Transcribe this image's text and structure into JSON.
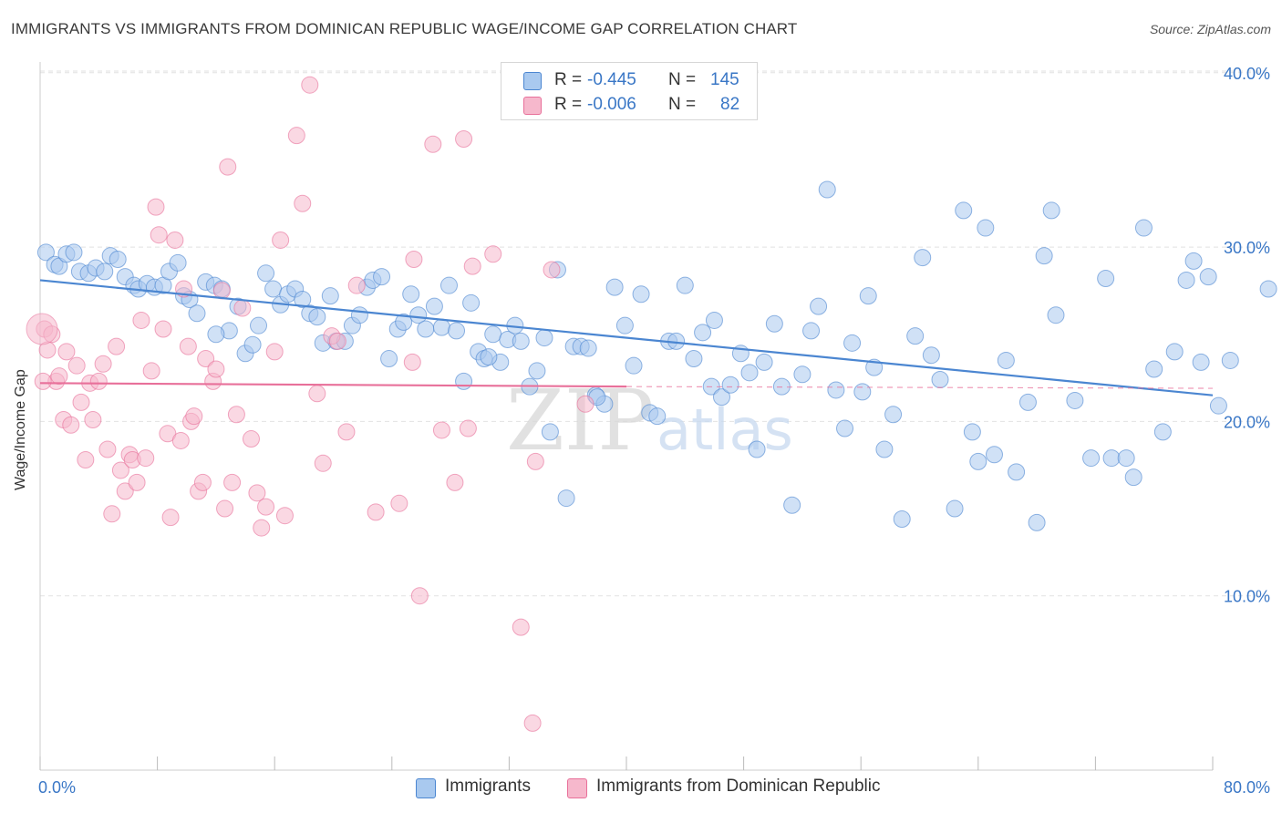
{
  "title": "IMMIGRANTS VS IMMIGRANTS FROM DOMINICAN REPUBLIC WAGE/INCOME GAP CORRELATION CHART",
  "source": "Source: ZipAtlas.com",
  "watermark": {
    "zip": "ZIP",
    "atlas": "atlas"
  },
  "legend": [
    {
      "r_label": "R =",
      "r_value": "-0.445",
      "n_label": "N =",
      "n_value": "145",
      "color": "#a9c9ef"
    },
    {
      "r_label": "R =",
      "r_value": "-0.006",
      "n_label": "N =",
      "n_value": "82",
      "color": "#f6b8cc"
    }
  ],
  "bottom_legend": [
    {
      "label": "Immigrants",
      "color": "#a9c9ef"
    },
    {
      "label": "Immigrants from Dominican Republic",
      "color": "#f6b8cc"
    }
  ],
  "chart_data": {
    "type": "scatter",
    "ylabel": "Wage/Income Gap",
    "xlim": [
      0,
      80
    ],
    "ylim": [
      0,
      40
    ],
    "x_tick_labels": [
      "0.0%",
      "80.0%"
    ],
    "y_tick_labels": [
      "10.0%",
      "20.0%",
      "30.0%",
      "40.0%"
    ],
    "y_ticks": [
      10,
      20,
      30,
      40
    ],
    "grid": true,
    "series": [
      {
        "name": "Immigrants",
        "color": "#4b86d1",
        "fill": "#a9c9ef",
        "trend": {
          "x0": 0,
          "y0": 28.1,
          "x1": 80,
          "y1": 21.5
        },
        "points": [
          [
            0.4,
            29.7
          ],
          [
            1.0,
            29.0
          ],
          [
            1.3,
            28.9
          ],
          [
            1.8,
            29.6
          ],
          [
            2.3,
            29.7
          ],
          [
            2.7,
            28.6
          ],
          [
            3.3,
            28.5
          ],
          [
            3.8,
            28.8
          ],
          [
            4.4,
            28.6
          ],
          [
            4.8,
            29.5
          ],
          [
            5.3,
            29.3
          ],
          [
            5.8,
            28.3
          ],
          [
            6.4,
            27.8
          ],
          [
            6.7,
            27.6
          ],
          [
            7.3,
            27.9
          ],
          [
            7.8,
            27.7
          ],
          [
            8.4,
            27.8
          ],
          [
            8.8,
            28.6
          ],
          [
            9.4,
            29.1
          ],
          [
            9.8,
            27.2
          ],
          [
            10.2,
            27.0
          ],
          [
            10.7,
            26.2
          ],
          [
            11.3,
            28.0
          ],
          [
            11.9,
            27.8
          ],
          [
            12.4,
            27.6
          ],
          [
            12.9,
            25.2
          ],
          [
            13.5,
            26.6
          ],
          [
            14.0,
            23.9
          ],
          [
            14.5,
            24.4
          ],
          [
            14.9,
            25.5
          ],
          [
            15.4,
            28.5
          ],
          [
            15.9,
            27.6
          ],
          [
            16.4,
            26.7
          ],
          [
            16.9,
            27.3
          ],
          [
            17.4,
            27.6
          ],
          [
            17.9,
            27.0
          ],
          [
            18.4,
            26.2
          ],
          [
            18.9,
            26.0
          ],
          [
            19.3,
            24.5
          ],
          [
            19.8,
            27.2
          ],
          [
            20.2,
            24.6
          ],
          [
            20.8,
            24.6
          ],
          [
            21.3,
            25.5
          ],
          [
            21.8,
            26.1
          ],
          [
            22.3,
            27.7
          ],
          [
            22.7,
            28.1
          ],
          [
            23.3,
            28.3
          ],
          [
            23.8,
            23.6
          ],
          [
            24.4,
            25.3
          ],
          [
            24.8,
            25.7
          ],
          [
            25.3,
            27.3
          ],
          [
            25.8,
            26.1
          ],
          [
            26.3,
            25.3
          ],
          [
            26.9,
            26.6
          ],
          [
            27.4,
            25.4
          ],
          [
            27.9,
            27.8
          ],
          [
            28.4,
            25.2
          ],
          [
            28.9,
            22.3
          ],
          [
            29.4,
            26.8
          ],
          [
            29.9,
            24.0
          ],
          [
            30.3,
            23.6
          ],
          [
            30.9,
            25.0
          ],
          [
            31.4,
            23.4
          ],
          [
            31.9,
            24.7
          ],
          [
            32.4,
            25.5
          ],
          [
            32.8,
            24.6
          ],
          [
            33.4,
            22.0
          ],
          [
            33.9,
            22.9
          ],
          [
            34.4,
            24.8
          ],
          [
            34.8,
            19.4
          ],
          [
            35.3,
            28.7
          ],
          [
            35.9,
            15.6
          ],
          [
            36.4,
            24.3
          ],
          [
            36.9,
            24.3
          ],
          [
            37.4,
            24.2
          ],
          [
            37.9,
            21.5
          ],
          [
            38.5,
            21.0
          ],
          [
            39.2,
            27.7
          ],
          [
            39.9,
            25.5
          ],
          [
            40.5,
            23.2
          ],
          [
            41.0,
            27.3
          ],
          [
            41.6,
            20.5
          ],
          [
            42.1,
            20.3
          ],
          [
            42.9,
            24.6
          ],
          [
            43.4,
            24.6
          ],
          [
            44.0,
            27.8
          ],
          [
            44.6,
            23.6
          ],
          [
            45.2,
            25.1
          ],
          [
            45.8,
            22.0
          ],
          [
            46.5,
            21.4
          ],
          [
            47.1,
            22.1
          ],
          [
            47.8,
            23.9
          ],
          [
            48.4,
            22.8
          ],
          [
            48.9,
            18.4
          ],
          [
            49.4,
            23.4
          ],
          [
            50.1,
            25.6
          ],
          [
            50.6,
            22.0
          ],
          [
            51.3,
            15.2
          ],
          [
            52.0,
            22.7
          ],
          [
            52.6,
            25.2
          ],
          [
            53.1,
            26.6
          ],
          [
            53.7,
            33.3
          ],
          [
            54.3,
            21.8
          ],
          [
            54.9,
            19.6
          ],
          [
            55.4,
            24.5
          ],
          [
            56.1,
            21.7
          ],
          [
            56.9,
            23.1
          ],
          [
            57.6,
            18.4
          ],
          [
            58.2,
            20.4
          ],
          [
            58.8,
            14.4
          ],
          [
            59.7,
            24.9
          ],
          [
            60.2,
            29.4
          ],
          [
            60.8,
            23.8
          ],
          [
            61.4,
            22.4
          ],
          [
            62.4,
            15.0
          ],
          [
            63.0,
            32.1
          ],
          [
            63.6,
            19.4
          ],
          [
            64.0,
            17.7
          ],
          [
            64.5,
            31.1
          ],
          [
            65.1,
            18.1
          ],
          [
            65.9,
            23.5
          ],
          [
            66.6,
            17.1
          ],
          [
            67.4,
            21.1
          ],
          [
            68.0,
            14.2
          ],
          [
            68.5,
            29.5
          ],
          [
            69.0,
            32.1
          ],
          [
            69.3,
            26.1
          ],
          [
            70.6,
            21.2
          ],
          [
            71.7,
            17.9
          ],
          [
            72.7,
            28.2
          ],
          [
            73.1,
            17.9
          ],
          [
            74.1,
            17.9
          ],
          [
            74.6,
            16.8
          ],
          [
            75.3,
            31.1
          ],
          [
            76.0,
            23.0
          ],
          [
            76.6,
            19.4
          ],
          [
            77.4,
            24.0
          ],
          [
            78.2,
            28.1
          ],
          [
            78.7,
            29.2
          ],
          [
            79.2,
            23.4
          ],
          [
            79.7,
            28.3
          ],
          [
            80.4,
            20.9
          ],
          [
            81.2,
            23.5
          ],
          [
            83.8,
            27.6
          ],
          [
            30.6,
            23.7
          ],
          [
            38.0,
            21.4
          ],
          [
            56.5,
            27.2
          ],
          [
            46.0,
            25.8
          ],
          [
            12.0,
            25.0
          ]
        ]
      },
      {
        "name": "Immigrants from Dominican Republic",
        "color": "#e8709a",
        "fill": "#f6b8cc",
        "trend": {
          "x0": 0,
          "y0": 22.2,
          "x1": 40,
          "y1": 22.0
        },
        "trend_dashed": {
          "x0": 40,
          "y0": 22.0,
          "x1": 80,
          "y1": 21.9
        },
        "points": [
          [
            0.3,
            25.3
          ],
          [
            0.5,
            24.1
          ],
          [
            0.8,
            25.0
          ],
          [
            1.1,
            22.3
          ],
          [
            1.3,
            22.6
          ],
          [
            1.6,
            20.1
          ],
          [
            1.8,
            24.0
          ],
          [
            2.1,
            19.8
          ],
          [
            2.5,
            23.2
          ],
          [
            2.8,
            21.1
          ],
          [
            3.1,
            17.8
          ],
          [
            3.4,
            22.2
          ],
          [
            3.6,
            20.1
          ],
          [
            4.0,
            22.3
          ],
          [
            4.3,
            23.3
          ],
          [
            4.6,
            18.4
          ],
          [
            4.9,
            14.7
          ],
          [
            5.2,
            24.3
          ],
          [
            5.5,
            17.2
          ],
          [
            5.8,
            16.0
          ],
          [
            6.1,
            18.1
          ],
          [
            6.3,
            17.8
          ],
          [
            6.6,
            16.5
          ],
          [
            6.9,
            25.8
          ],
          [
            7.2,
            17.9
          ],
          [
            7.6,
            22.9
          ],
          [
            7.9,
            32.3
          ],
          [
            8.1,
            30.7
          ],
          [
            8.4,
            25.3
          ],
          [
            8.7,
            19.3
          ],
          [
            8.9,
            14.5
          ],
          [
            9.2,
            30.4
          ],
          [
            9.6,
            18.9
          ],
          [
            9.8,
            27.6
          ],
          [
            10.1,
            24.3
          ],
          [
            10.3,
            20.0
          ],
          [
            10.5,
            20.3
          ],
          [
            10.8,
            16.0
          ],
          [
            11.1,
            16.5
          ],
          [
            11.3,
            23.6
          ],
          [
            11.8,
            22.3
          ],
          [
            12.0,
            23.0
          ],
          [
            12.4,
            27.5
          ],
          [
            12.6,
            15.0
          ],
          [
            12.8,
            34.6
          ],
          [
            13.1,
            16.5
          ],
          [
            13.4,
            20.4
          ],
          [
            13.8,
            26.5
          ],
          [
            14.4,
            19.0
          ],
          [
            14.8,
            15.9
          ],
          [
            15.1,
            13.9
          ],
          [
            15.4,
            15.1
          ],
          [
            16.0,
            24.0
          ],
          [
            16.4,
            30.4
          ],
          [
            16.7,
            14.6
          ],
          [
            17.5,
            36.4
          ],
          [
            17.9,
            32.5
          ],
          [
            18.4,
            39.3
          ],
          [
            18.9,
            21.6
          ],
          [
            19.3,
            17.6
          ],
          [
            19.9,
            24.9
          ],
          [
            20.3,
            24.6
          ],
          [
            20.9,
            19.4
          ],
          [
            21.6,
            27.8
          ],
          [
            22.9,
            14.8
          ],
          [
            24.5,
            15.3
          ],
          [
            25.4,
            23.4
          ],
          [
            25.5,
            29.3
          ],
          [
            25.9,
            10.0
          ],
          [
            26.8,
            35.9
          ],
          [
            27.4,
            19.5
          ],
          [
            28.3,
            16.5
          ],
          [
            28.9,
            36.2
          ],
          [
            29.2,
            19.6
          ],
          [
            29.5,
            28.9
          ],
          [
            30.9,
            29.6
          ],
          [
            32.8,
            8.2
          ],
          [
            33.6,
            2.7
          ],
          [
            33.8,
            17.7
          ],
          [
            34.9,
            28.7
          ],
          [
            37.2,
            21.0
          ],
          [
            0.2,
            22.3
          ]
        ]
      }
    ]
  }
}
